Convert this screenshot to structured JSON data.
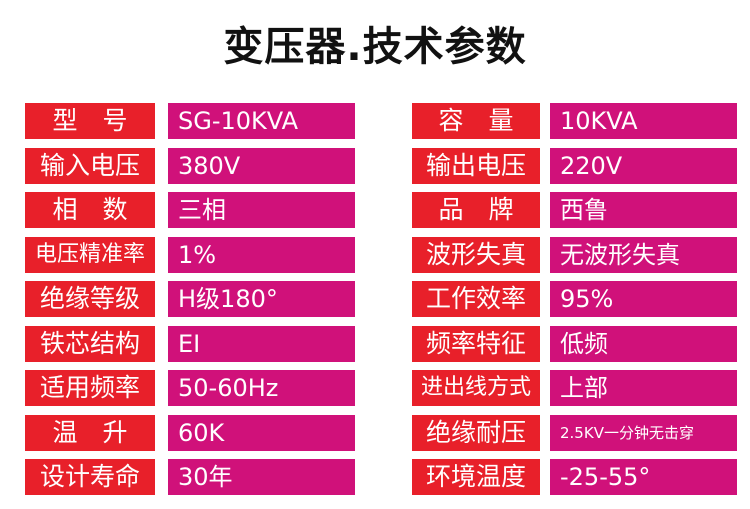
{
  "header": {
    "title": "变压器.技术参数"
  },
  "table": {
    "rows": [
      [
        "型　号",
        "SG-10KVA",
        "容　量",
        "10KVA"
      ],
      [
        "输入电压",
        "380V",
        "输出电压",
        "220V"
      ],
      [
        "相　数",
        "三相",
        "品　牌",
        "西鲁"
      ],
      [
        "电压精准率",
        "1%",
        "波形失真",
        "无波形失真"
      ],
      [
        "绝缘等级",
        "H级180°",
        "工作效率",
        "95%"
      ],
      [
        "铁芯结构",
        "EI",
        "频率特征",
        "低频"
      ],
      [
        "适用频率",
        "50-60Hz",
        "进出线方式",
        "上部"
      ],
      [
        "温　升",
        "60K",
        "绝缘耐压",
        "2.5KV一分钟无击穿"
      ],
      [
        "设计寿命",
        "30年",
        "环境温度",
        "-25-55°"
      ]
    ]
  }
}
